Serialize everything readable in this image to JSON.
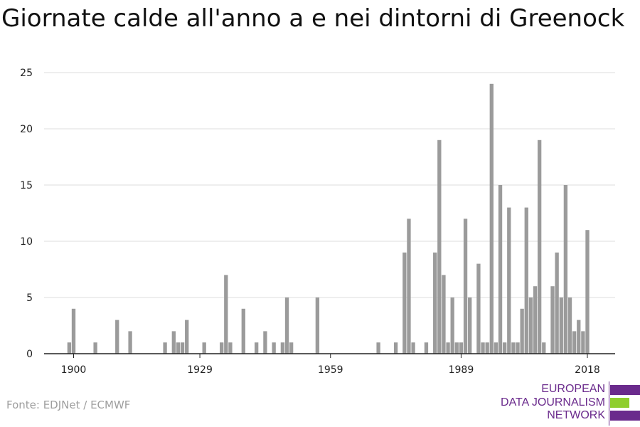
{
  "title": "Giornate calde all'anno a e nei dintorni di Greenock",
  "source": "Fonte: EDJNet / ECMWF",
  "logo": {
    "lines": [
      "EUROPEAN",
      "DATA JOURNALISM",
      "NETWORK"
    ],
    "colors": {
      "purple": "#6a2a8c",
      "green": "#8fce2e"
    }
  },
  "colors": {
    "bar": "#9b9b9b",
    "grid": "#dddddd",
    "axis": "#222222"
  },
  "chart_data": {
    "type": "bar",
    "title": "Giornate calde all'anno a e nei dintorni di Greenock",
    "xlabel": "",
    "ylabel": "",
    "ylim": [
      0,
      25
    ],
    "yticks": [
      0,
      5,
      10,
      15,
      20,
      25
    ],
    "xticks": [
      1900,
      1929,
      1959,
      1989,
      2018
    ],
    "grid": true,
    "x": [
      1899,
      1900,
      1905,
      1910,
      1913,
      1921,
      1923,
      1924,
      1925,
      1926,
      1930,
      1934,
      1935,
      1936,
      1939,
      1942,
      1944,
      1946,
      1948,
      1949,
      1950,
      1956,
      1970,
      1974,
      1976,
      1977,
      1978,
      1981,
      1983,
      1984,
      1985,
      1986,
      1987,
      1988,
      1989,
      1990,
      1991,
      1993,
      1994,
      1995,
      1996,
      1997,
      1998,
      1999,
      2000,
      2001,
      2002,
      2003,
      2004,
      2005,
      2006,
      2007,
      2008,
      2010,
      2011,
      2012,
      2013,
      2014,
      2015,
      2016,
      2017,
      2018
    ],
    "values": [
      1,
      4,
      1,
      3,
      2,
      1,
      2,
      1,
      1,
      3,
      1,
      1,
      7,
      1,
      4,
      1,
      2,
      1,
      1,
      5,
      1,
      5,
      1,
      1,
      9,
      12,
      1,
      1,
      9,
      19,
      7,
      1,
      5,
      1,
      1,
      12,
      5,
      8,
      1,
      1,
      24,
      1,
      15,
      1,
      13,
      1,
      1,
      4,
      13,
      5,
      6,
      19,
      1,
      6,
      9,
      5,
      15,
      5,
      2,
      3,
      2,
      11
    ]
  }
}
